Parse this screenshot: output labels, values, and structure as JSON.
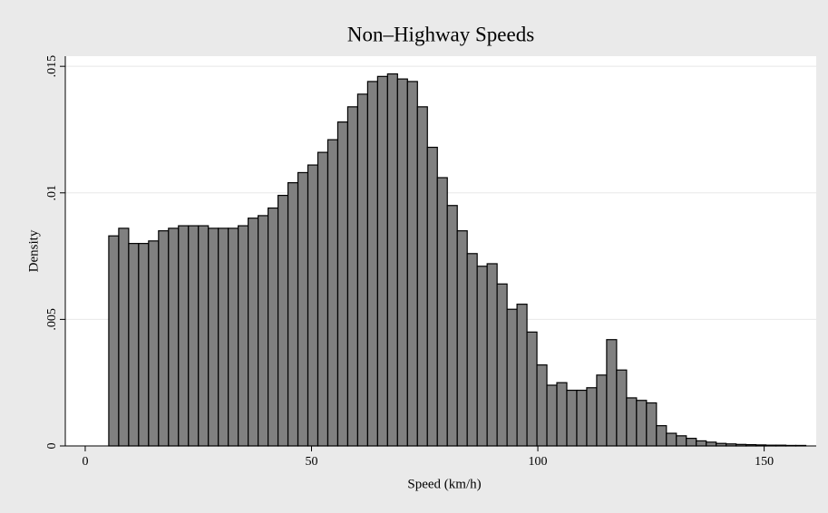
{
  "chart_data": {
    "type": "histogram",
    "title": "Non–Highway Speeds",
    "xlabel": "Speed (km/h)",
    "ylabel": "Density",
    "color": "#808080",
    "edgecolor": "#000000",
    "grid": true,
    "bins": [
      5.2,
      7.4,
      9.6,
      11.8,
      14,
      16.2,
      18.4,
      20.6,
      22.8,
      25,
      27.2,
      29.4,
      31.6,
      33.8,
      36,
      38.2,
      40.4,
      42.6,
      44.8,
      47,
      49.2,
      51.4,
      53.6,
      55.8,
      58,
      60.2,
      62.4,
      64.6,
      66.8,
      69,
      71.2,
      73.4,
      75.6,
      77.8,
      80,
      82.2,
      84.4,
      86.6,
      88.8,
      91,
      93.2,
      95.4,
      97.6,
      99.8,
      102,
      104.2,
      106.4,
      108.6,
      110.8,
      113,
      115.2,
      117.4,
      119.6,
      121.8,
      124,
      126.2,
      128.4,
      130.6,
      132.8,
      135,
      137.2,
      139.4,
      141.6,
      143.8,
      146,
      148.2,
      150.4,
      152.6,
      154.8,
      157,
      159.2
    ],
    "values": [
      0.0083,
      0.0086,
      0.008,
      0.008,
      0.0081,
      0.0085,
      0.0086,
      0.0087,
      0.0087,
      0.0087,
      0.0086,
      0.0086,
      0.0086,
      0.0087,
      0.009,
      0.0091,
      0.0094,
      0.0099,
      0.0104,
      0.0108,
      0.0111,
      0.0116,
      0.0121,
      0.0128,
      0.0134,
      0.0139,
      0.0144,
      0.0146,
      0.0147,
      0.0145,
      0.0144,
      0.0134,
      0.0118,
      0.0106,
      0.0095,
      0.0085,
      0.0076,
      0.0071,
      0.0072,
      0.0064,
      0.0054,
      0.0056,
      0.0045,
      0.0032,
      0.0024,
      0.0025,
      0.0022,
      0.0022,
      0.0023,
      0.0028,
      0.0042,
      0.003,
      0.0019,
      0.0018,
      0.0017,
      0.0008,
      0.0005,
      0.0004,
      0.0003,
      0.0002,
      0.00015,
      0.0001,
      8e-05,
      6e-05,
      5e-05,
      4e-05,
      3e-05,
      3e-05,
      2e-05,
      2e-05
    ],
    "xlim": [
      -4.4,
      161.5
    ],
    "xticks": [
      0,
      50,
      100,
      150
    ],
    "ylim": [
      0,
      0.0154
    ],
    "yticks": [
      0,
      {
        "value": 0.005,
        "label": ".005"
      },
      {
        "value": 0.01,
        "label": ".01"
      },
      {
        "value": 0.015,
        "label": ".015"
      }
    ]
  }
}
